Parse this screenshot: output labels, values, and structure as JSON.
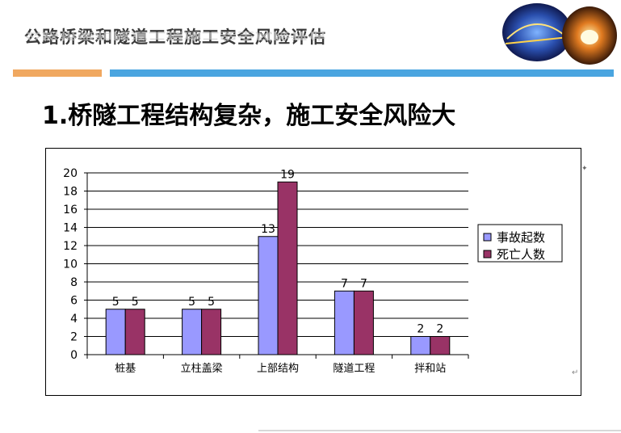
{
  "header": {
    "title": "公路桥梁和隧道工程施工安全风险评估"
  },
  "slide": {
    "heading": "1.桥隧工程结构复杂，施工安全风险大"
  },
  "colors": {
    "accent_orange": "#f0a860",
    "accent_blue": "#4aa5e0",
    "series_accidents": "#9999ff",
    "series_deaths": "#993366"
  },
  "chart_data": {
    "type": "bar",
    "categories": [
      "桩基",
      "立柱盖梁",
      "上部结构",
      "隧道工程",
      "拌和站"
    ],
    "series": [
      {
        "name": "事故起数",
        "values": [
          5,
          5,
          13,
          7,
          2
        ]
      },
      {
        "name": "死亡人数",
        "values": [
          5,
          5,
          19,
          7,
          2
        ]
      }
    ],
    "ylim": [
      0,
      20
    ],
    "yticks": [
      0,
      2,
      4,
      6,
      8,
      10,
      12,
      14,
      16,
      18,
      20
    ],
    "grid": true,
    "legend": "right",
    "data_labels": true
  }
}
